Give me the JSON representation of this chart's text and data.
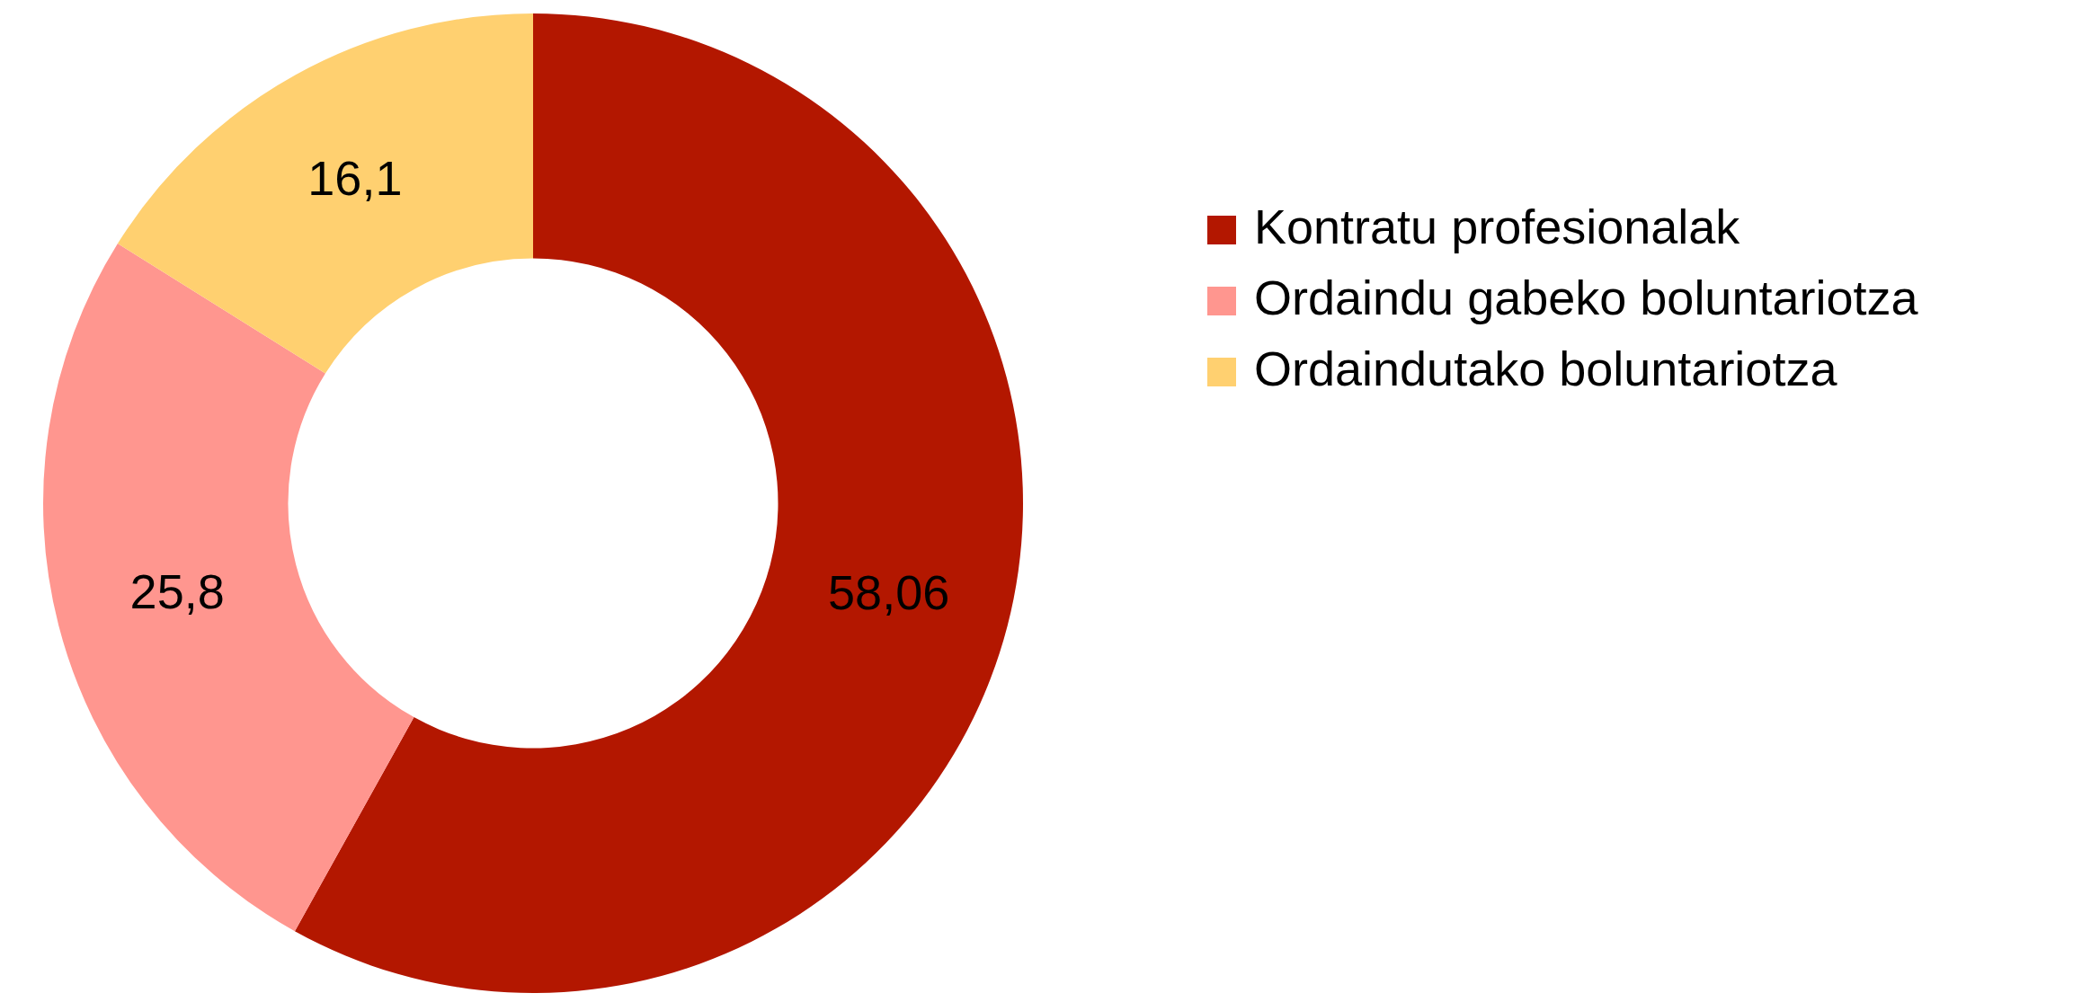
{
  "chart_data": {
    "type": "donut",
    "categories": [
      "Kontratu profesionalak",
      "Ordaindu gabeko boluntariotza",
      "Ordaindutako boluntariotza"
    ],
    "values": [
      58.06,
      25.8,
      16.1
    ],
    "value_labels": [
      "58,06",
      "25,8",
      "16,1"
    ],
    "colors": [
      "#b31700",
      "#ff968f",
      "#ffd070"
    ],
    "legend": "top right"
  }
}
